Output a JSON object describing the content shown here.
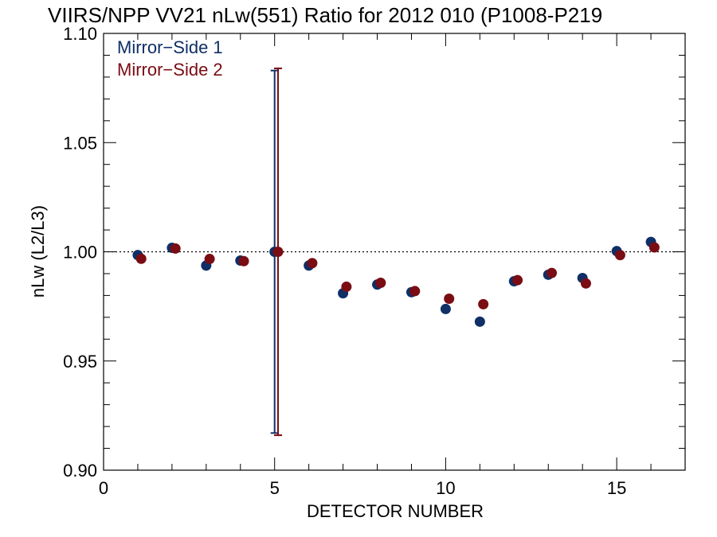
{
  "chart_data": {
    "type": "scatter",
    "title": "VIIRS/NPP VV21 nLw(551) Ratio for 2012 010 (P1008-P219",
    "xlabel": "DETECTOR NUMBER",
    "ylabel": "nLw (L2/L3)",
    "xlim": [
      0,
      17
    ],
    "ylim": [
      0.9,
      1.1
    ],
    "x_ticks": [
      0,
      5,
      10,
      15
    ],
    "x_tick_labels": [
      "0",
      "5",
      "10",
      "15"
    ],
    "y_ticks": [
      0.9,
      0.95,
      1.0,
      1.05,
      1.1
    ],
    "y_tick_labels": [
      "0.90",
      "0.95",
      "1.00",
      "1.05",
      "1.10"
    ],
    "reference_line": 1.0,
    "legend_placement": "top-left",
    "series": [
      {
        "name": "Mirror−Side 1",
        "color": "#0f2f66",
        "x": [
          1,
          2,
          3,
          4,
          5,
          6,
          7,
          8,
          9,
          10,
          11,
          12,
          13,
          14,
          15,
          16
        ],
        "values": [
          0.9985,
          1.0018,
          0.9937,
          0.996,
          1.0,
          0.9937,
          0.981,
          0.985,
          0.9815,
          0.9738,
          0.968,
          0.9865,
          0.9895,
          0.988,
          1.0003,
          1.0045
        ],
        "error_bar": {
          "x": 5,
          "low": 0.917,
          "high": 1.083
        }
      },
      {
        "name": "Mirror−Side 2",
        "color": "#7a0c14",
        "x": [
          1.1,
          2.1,
          3.1,
          4.1,
          5.1,
          6.1,
          7.1,
          8.1,
          9.1,
          10.1,
          11.1,
          12.1,
          13.1,
          14.1,
          15.1,
          16.1
        ],
        "values": [
          0.9968,
          1.0015,
          0.9967,
          0.9957,
          1.0,
          0.9948,
          0.984,
          0.9858,
          0.982,
          0.9785,
          0.976,
          0.987,
          0.9903,
          0.9855,
          0.9985,
          1.002
        ],
        "error_bar": {
          "x": 5.1,
          "low": 0.916,
          "high": 1.084
        }
      }
    ]
  }
}
